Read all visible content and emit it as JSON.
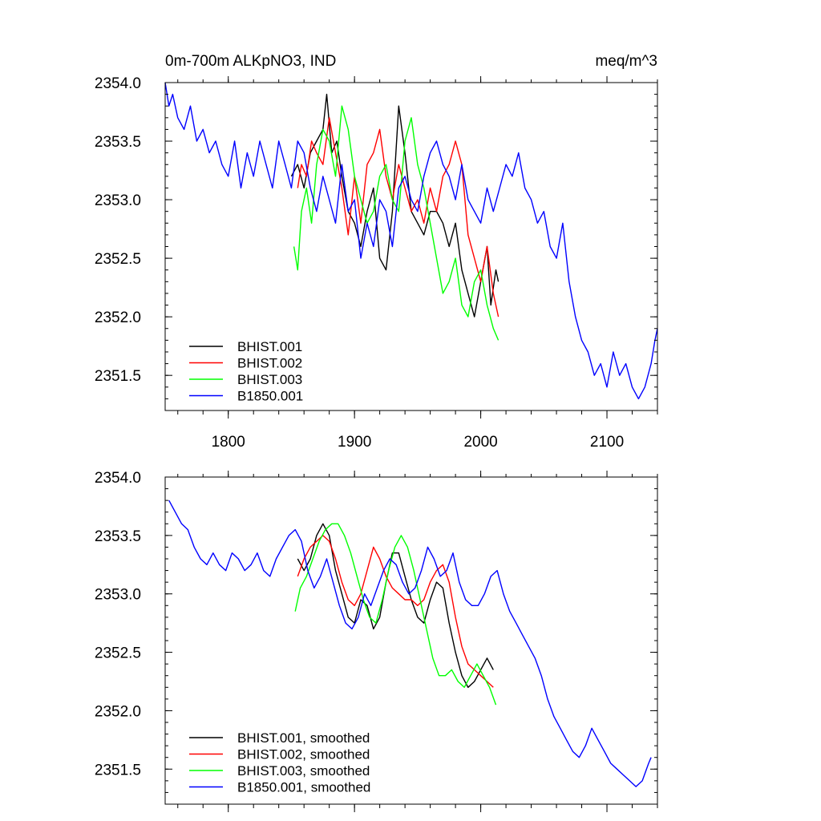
{
  "chart_data": [
    {
      "type": "line",
      "title_left": "0m-700m ALKpNO3, IND",
      "title_right": "meq/m^3",
      "xlim": [
        1750,
        2140
      ],
      "ylim": [
        2351.2,
        2354.0
      ],
      "yticks": [
        2354.0,
        2353.5,
        2353.0,
        2352.5,
        2352.0,
        2351.5
      ],
      "ytick_labels": [
        "2354.0",
        "2353.5",
        "2353.0",
        "2352.5",
        "2352.0",
        "2351.5"
      ],
      "xticks": [
        1800,
        1900,
        2000,
        2100
      ],
      "xtick_labels": [
        "1800",
        "1900",
        "2000",
        "2100"
      ],
      "legend_position": "bottom-left",
      "series": [
        {
          "name": "BHIST.001",
          "color": "#000000",
          "x": [
            1850,
            1855,
            1860,
            1865,
            1870,
            1875,
            1878,
            1882,
            1886,
            1890,
            1895,
            1900,
            1905,
            1910,
            1915,
            1920,
            1925,
            1930,
            1935,
            1940,
            1945,
            1950,
            1955,
            1960,
            1965,
            1970,
            1975,
            1980,
            1985,
            1990,
            1995,
            2000,
            2005,
            2008,
            2012,
            2014
          ],
          "y": [
            2353.2,
            2353.3,
            2353.1,
            2353.4,
            2353.5,
            2353.6,
            2353.9,
            2353.4,
            2353.5,
            2353.2,
            2352.9,
            2352.8,
            2352.6,
            2352.9,
            2353.1,
            2352.5,
            2352.4,
            2352.9,
            2353.8,
            2353.4,
            2352.9,
            2352.8,
            2352.7,
            2352.9,
            2352.9,
            2352.8,
            2352.6,
            2352.8,
            2352.4,
            2352.2,
            2352.0,
            2352.3,
            2352.6,
            2352.1,
            2352.4,
            2352.3
          ]
        },
        {
          "name": "BHIST.002",
          "color": "#ff0000",
          "x": [
            1855,
            1858,
            1862,
            1866,
            1870,
            1875,
            1880,
            1885,
            1890,
            1895,
            1900,
            1905,
            1910,
            1915,
            1920,
            1925,
            1930,
            1935,
            1940,
            1945,
            1950,
            1955,
            1960,
            1965,
            1970,
            1975,
            1980,
            1985,
            1990,
            1995,
            2000,
            2005,
            2010,
            2014
          ],
          "y": [
            2353.1,
            2353.3,
            2353.2,
            2353.5,
            2353.4,
            2353.3,
            2353.7,
            2353.4,
            2353.1,
            2352.7,
            2353.2,
            2352.8,
            2353.3,
            2353.4,
            2353.6,
            2353.2,
            2353.0,
            2353.3,
            2353.1,
            2352.9,
            2353.0,
            2352.8,
            2353.1,
            2352.9,
            2353.2,
            2353.3,
            2353.5,
            2353.3,
            2352.7,
            2352.5,
            2352.3,
            2352.6,
            2352.2,
            2352.0
          ]
        },
        {
          "name": "BHIST.003",
          "color": "#00ff00",
          "x": [
            1852,
            1855,
            1858,
            1862,
            1866,
            1870,
            1875,
            1880,
            1885,
            1890,
            1895,
            1900,
            1905,
            1910,
            1915,
            1920,
            1925,
            1930,
            1935,
            1940,
            1945,
            1950,
            1955,
            1960,
            1965,
            1970,
            1975,
            1980,
            1985,
            1990,
            1995,
            2000,
            2005,
            2010,
            2014
          ],
          "y": [
            2352.6,
            2352.4,
            2352.9,
            2353.1,
            2352.8,
            2353.3,
            2353.6,
            2353.5,
            2353.2,
            2353.8,
            2353.6,
            2353.2,
            2353.0,
            2352.8,
            2352.9,
            2353.2,
            2353.3,
            2353.0,
            2352.9,
            2353.5,
            2353.7,
            2353.3,
            2353.1,
            2352.8,
            2352.5,
            2352.2,
            2352.3,
            2352.5,
            2352.1,
            2352.0,
            2352.3,
            2352.4,
            2352.1,
            2351.9,
            2351.8
          ]
        },
        {
          "name": "B1850.001",
          "color": "#0000ff",
          "x": [
            1750,
            1753,
            1756,
            1760,
            1765,
            1770,
            1775,
            1780,
            1785,
            1790,
            1795,
            1800,
            1805,
            1810,
            1815,
            1820,
            1825,
            1830,
            1835,
            1840,
            1845,
            1850,
            1855,
            1860,
            1865,
            1870,
            1875,
            1880,
            1885,
            1890,
            1895,
            1900,
            1905,
            1910,
            1915,
            1920,
            1925,
            1930,
            1935,
            1940,
            1945,
            1950,
            1955,
            1960,
            1965,
            1970,
            1975,
            1980,
            1985,
            1990,
            1995,
            2000,
            2005,
            2010,
            2015,
            2020,
            2025,
            2030,
            2035,
            2040,
            2045,
            2050,
            2055,
            2060,
            2065,
            2070,
            2075,
            2080,
            2085,
            2090,
            2095,
            2100,
            2105,
            2110,
            2115,
            2120,
            2125,
            2130,
            2135,
            2138,
            2140
          ],
          "y": [
            2354.0,
            2353.8,
            2353.9,
            2353.7,
            2353.6,
            2353.8,
            2353.5,
            2353.6,
            2353.4,
            2353.5,
            2353.3,
            2353.2,
            2353.5,
            2353.1,
            2353.4,
            2353.2,
            2353.5,
            2353.3,
            2353.1,
            2353.5,
            2353.3,
            2353.1,
            2353.5,
            2353.4,
            2353.1,
            2352.9,
            2353.2,
            2353.0,
            2352.8,
            2353.3,
            2352.9,
            2353.0,
            2352.5,
            2352.8,
            2352.6,
            2353.0,
            2352.9,
            2352.6,
            2353.1,
            2353.2,
            2353.0,
            2352.9,
            2353.2,
            2353.4,
            2353.5,
            2353.3,
            2353.2,
            2353.0,
            2353.3,
            2353.0,
            2352.9,
            2352.8,
            2353.1,
            2352.9,
            2353.1,
            2353.3,
            2353.2,
            2353.4,
            2353.1,
            2353.0,
            2352.8,
            2352.9,
            2352.6,
            2352.5,
            2352.8,
            2352.3,
            2352.0,
            2351.8,
            2351.7,
            2351.5,
            2351.6,
            2351.4,
            2351.7,
            2351.5,
            2351.6,
            2351.4,
            2351.3,
            2351.4,
            2351.6,
            2351.8,
            2351.9
          ]
        }
      ]
    },
    {
      "type": "line",
      "xlim": [
        1750,
        2140
      ],
      "ylim": [
        2351.2,
        2354.0
      ],
      "yticks": [
        2354.0,
        2353.5,
        2353.0,
        2352.5,
        2352.0,
        2351.5
      ],
      "ytick_labels": [
        "2354.0",
        "2353.5",
        "2353.0",
        "2352.5",
        "2352.0",
        "2351.5"
      ],
      "xticks": [
        1800,
        1900,
        2000,
        2100
      ],
      "xtick_labels": [
        "",
        "",
        "",
        ""
      ],
      "legend_position": "bottom-left",
      "series": [
        {
          "name": "BHIST.001, smoothed",
          "color": "#000000",
          "x": [
            1855,
            1860,
            1865,
            1870,
            1875,
            1880,
            1885,
            1890,
            1895,
            1900,
            1905,
            1910,
            1915,
            1920,
            1925,
            1930,
            1935,
            1940,
            1945,
            1950,
            1955,
            1960,
            1965,
            1970,
            1975,
            1980,
            1985,
            1990,
            1995,
            2000,
            2005,
            2010
          ],
          "y": [
            2353.3,
            2353.2,
            2353.3,
            2353.5,
            2353.6,
            2353.5,
            2353.2,
            2353.0,
            2352.8,
            2352.75,
            2352.95,
            2352.9,
            2352.7,
            2352.8,
            2353.1,
            2353.35,
            2353.35,
            2353.15,
            2352.95,
            2352.8,
            2352.75,
            2352.95,
            2353.1,
            2353.05,
            2352.75,
            2352.5,
            2352.3,
            2352.2,
            2352.25,
            2352.35,
            2352.45,
            2352.35
          ]
        },
        {
          "name": "BHIST.002, smoothed",
          "color": "#ff0000",
          "x": [
            1855,
            1860,
            1865,
            1870,
            1875,
            1880,
            1885,
            1890,
            1895,
            1900,
            1905,
            1910,
            1915,
            1920,
            1925,
            1930,
            1935,
            1940,
            1945,
            1950,
            1955,
            1960,
            1965,
            1970,
            1975,
            1980,
            1985,
            1990,
            1995,
            2000,
            2005,
            2010
          ],
          "y": [
            2353.15,
            2353.3,
            2353.4,
            2353.45,
            2353.5,
            2353.45,
            2353.3,
            2353.1,
            2352.95,
            2352.9,
            2353.0,
            2353.2,
            2353.4,
            2353.3,
            2353.15,
            2353.05,
            2353.0,
            2352.95,
            2352.95,
            2352.9,
            2352.95,
            2353.1,
            2353.2,
            2353.25,
            2353.1,
            2352.8,
            2352.55,
            2352.4,
            2352.35,
            2352.3,
            2352.25,
            2352.2
          ]
        },
        {
          "name": "BHIST.003, smoothed",
          "color": "#00ff00",
          "x": [
            1853,
            1857,
            1862,
            1867,
            1872,
            1877,
            1882,
            1887,
            1892,
            1897,
            1902,
            1907,
            1912,
            1917,
            1922,
            1927,
            1932,
            1937,
            1942,
            1947,
            1952,
            1957,
            1962,
            1967,
            1972,
            1977,
            1982,
            1987,
            1992,
            1997,
            2002,
            2007,
            2012
          ],
          "y": [
            2352.85,
            2353.05,
            2353.15,
            2353.3,
            2353.45,
            2353.55,
            2353.6,
            2353.6,
            2353.5,
            2353.35,
            2353.15,
            2352.95,
            2352.8,
            2352.75,
            2352.95,
            2353.2,
            2353.4,
            2353.5,
            2353.4,
            2353.2,
            2352.95,
            2352.7,
            2352.45,
            2352.3,
            2352.3,
            2352.35,
            2352.25,
            2352.2,
            2352.3,
            2352.4,
            2352.3,
            2352.2,
            2352.05
          ]
        },
        {
          "name": "B1850.001, smoothed",
          "color": "#0000ff",
          "x": [
            1753,
            1758,
            1763,
            1768,
            1773,
            1778,
            1783,
            1788,
            1793,
            1798,
            1803,
            1808,
            1813,
            1818,
            1823,
            1828,
            1833,
            1838,
            1843,
            1848,
            1853,
            1858,
            1863,
            1868,
            1873,
            1878,
            1883,
            1888,
            1893,
            1898,
            1903,
            1908,
            1913,
            1918,
            1923,
            1928,
            1933,
            1938,
            1943,
            1948,
            1953,
            1958,
            1963,
            1968,
            1973,
            1978,
            1983,
            1988,
            1993,
            1998,
            2003,
            2008,
            2013,
            2018,
            2023,
            2028,
            2033,
            2038,
            2043,
            2048,
            2053,
            2058,
            2063,
            2068,
            2073,
            2078,
            2083,
            2088,
            2093,
            2098,
            2103,
            2108,
            2113,
            2118,
            2123,
            2128,
            2133,
            2135
          ],
          "y": [
            2353.8,
            2353.7,
            2353.6,
            2353.55,
            2353.4,
            2353.3,
            2353.25,
            2353.35,
            2353.25,
            2353.2,
            2353.35,
            2353.3,
            2353.2,
            2353.25,
            2353.35,
            2353.2,
            2353.15,
            2353.3,
            2353.4,
            2353.5,
            2353.55,
            2353.45,
            2353.2,
            2353.05,
            2353.15,
            2353.3,
            2353.1,
            2352.9,
            2352.75,
            2352.7,
            2352.8,
            2353.0,
            2352.9,
            2353.05,
            2353.2,
            2353.3,
            2353.25,
            2353.1,
            2353.0,
            2353.05,
            2353.2,
            2353.4,
            2353.3,
            2353.15,
            2353.2,
            2353.35,
            2353.1,
            2352.95,
            2352.9,
            2352.9,
            2353.0,
            2353.15,
            2353.2,
            2353.0,
            2352.85,
            2352.75,
            2352.65,
            2352.55,
            2352.45,
            2352.3,
            2352.1,
            2351.95,
            2351.85,
            2351.75,
            2351.65,
            2351.6,
            2351.7,
            2351.85,
            2351.75,
            2351.65,
            2351.55,
            2351.5,
            2351.45,
            2351.4,
            2351.35,
            2351.4,
            2351.55,
            2351.6
          ]
        }
      ]
    }
  ]
}
